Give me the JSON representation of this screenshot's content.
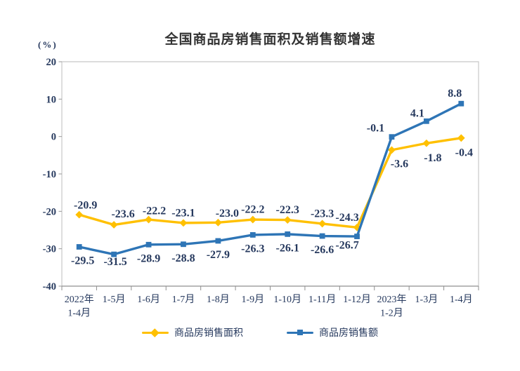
{
  "chart_data": {
    "type": "line",
    "title": "全国商品房销售面积及销售额增速",
    "unit_label": "(%)",
    "categories": [
      [
        "2022年",
        "1-4月"
      ],
      [
        "1-5月"
      ],
      [
        "1-6月"
      ],
      [
        "1-7月"
      ],
      [
        "1-8月"
      ],
      [
        "1-9月"
      ],
      [
        "1-10月"
      ],
      [
        "1-11月"
      ],
      [
        "1-12月"
      ],
      [
        "2023年",
        "1-2月"
      ],
      [
        "1-3月"
      ],
      [
        "1-4月"
      ]
    ],
    "series": [
      {
        "id": "sales-area",
        "name": "商品房销售面积",
        "color": "#FFC000",
        "marker": "diamond",
        "values": [
          -20.9,
          -23.6,
          -22.2,
          -23.1,
          -23.0,
          -22.2,
          -22.3,
          -23.3,
          -24.3,
          -3.6,
          -1.8,
          -0.4
        ],
        "labels": [
          "-20.9",
          "-23.6",
          "-22.2",
          "-23.1",
          "-23.0",
          "-22.2",
          "-22.3",
          "-23.3",
          "-24.3",
          "-3.6",
          "-1.8",
          "-0.4"
        ],
        "label_side": "above",
        "label_side_overrides": {
          "9": "below",
          "10": "below",
          "11": "below"
        },
        "label_offsets": {
          "0": [
            9,
            1
          ],
          "1": [
            13,
            -1
          ],
          "2": [
            8,
            2
          ],
          "4": [
            13,
            1
          ],
          "8": [
            -14,
            0
          ],
          "9": [
            11,
            0
          ],
          "10": [
            9,
            1
          ],
          "11": [
            4,
            1
          ]
        }
      },
      {
        "id": "sales-amount",
        "name": "商品房销售额",
        "color": "#2E75B6",
        "marker": "square",
        "values": [
          -29.5,
          -31.5,
          -28.9,
          -28.8,
          -27.9,
          -26.3,
          -26.1,
          -26.6,
          -26.7,
          -0.1,
          4.1,
          8.8
        ],
        "labels": [
          "-29.5",
          "-31.5",
          "-28.9",
          "-28.8",
          "-27.9",
          "-26.3",
          "-26.1",
          "-26.6",
          "-26.7",
          "-0.1",
          "4.1",
          "8.8"
        ],
        "label_side": "below",
        "label_side_overrides": {
          "9": "above",
          "10": "above",
          "11": "above"
        },
        "label_offsets": {
          "0": [
            5,
            0
          ],
          "1": [
            2,
            -9
          ],
          "8": [
            -14,
            -7
          ],
          "9": [
            -23,
            2
          ],
          "10": [
            -13,
            3
          ],
          "11": [
            -9,
            0
          ]
        }
      }
    ],
    "ylim": [
      -40,
      20
    ],
    "ytick_labels": [
      "20",
      "10",
      "0",
      "-10",
      "-20",
      "-30",
      "-40"
    ],
    "yticks": [
      20,
      10,
      0,
      -10,
      -20,
      -30,
      -40
    ],
    "grid": "off",
    "legend_position": "bottom",
    "colors": {
      "text": "#26395E",
      "title": "#333333",
      "border": "#C8C8C8",
      "bottom_axis": "#8F8F8F",
      "tick": "#9A9A9A"
    }
  }
}
